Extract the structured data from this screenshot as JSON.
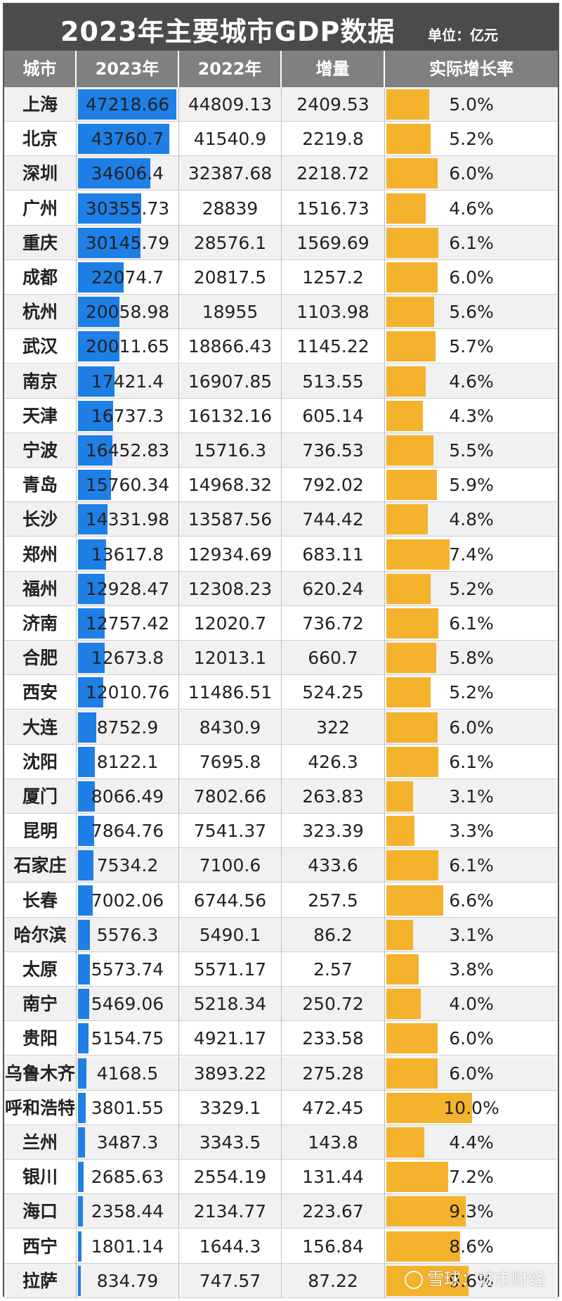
{
  "header": {
    "title": "2023年主要城市GDP数据",
    "unit": "单位：亿元",
    "columns": [
      "城市",
      "2023年",
      "2022年",
      "增量",
      "实际增长率"
    ]
  },
  "colors": {
    "bar_2023": "#1e7fe6",
    "bar_growth": "#f5b22c",
    "title_bg": "#4b4b4b",
    "header_bg": "#808080"
  },
  "watermark": "雪球：城市财经",
  "chart_data": {
    "type": "table",
    "title": "2023年主要城市GDP数据",
    "unit": "亿元",
    "columns": [
      "城市",
      "2023年",
      "2022年",
      "增量",
      "实际增长率"
    ],
    "rows": [
      {
        "city": "上海",
        "gdp2023": "47218.66",
        "gdp2022": "44809.13",
        "increase": "2409.53",
        "growth": "5.0%"
      },
      {
        "city": "北京",
        "gdp2023": "43760.7",
        "gdp2022": "41540.9",
        "increase": "2219.8",
        "growth": "5.2%"
      },
      {
        "city": "深圳",
        "gdp2023": "34606.4",
        "gdp2022": "32387.68",
        "increase": "2218.72",
        "growth": "6.0%"
      },
      {
        "city": "广州",
        "gdp2023": "30355.73",
        "gdp2022": "28839",
        "increase": "1516.73",
        "growth": "4.6%"
      },
      {
        "city": "重庆",
        "gdp2023": "30145.79",
        "gdp2022": "28576.1",
        "increase": "1569.69",
        "growth": "6.1%"
      },
      {
        "city": "成都",
        "gdp2023": "22074.7",
        "gdp2022": "20817.5",
        "increase": "1257.2",
        "growth": "6.0%"
      },
      {
        "city": "杭州",
        "gdp2023": "20058.98",
        "gdp2022": "18955",
        "increase": "1103.98",
        "growth": "5.6%"
      },
      {
        "city": "武汉",
        "gdp2023": "20011.65",
        "gdp2022": "18866.43",
        "increase": "1145.22",
        "growth": "5.7%"
      },
      {
        "city": "南京",
        "gdp2023": "17421.4",
        "gdp2022": "16907.85",
        "increase": "513.55",
        "growth": "4.6%"
      },
      {
        "city": "天津",
        "gdp2023": "16737.3",
        "gdp2022": "16132.16",
        "increase": "605.14",
        "growth": "4.3%"
      },
      {
        "city": "宁波",
        "gdp2023": "16452.83",
        "gdp2022": "15716.3",
        "increase": "736.53",
        "growth": "5.5%"
      },
      {
        "city": "青岛",
        "gdp2023": "15760.34",
        "gdp2022": "14968.32",
        "increase": "792.02",
        "growth": "5.9%"
      },
      {
        "city": "长沙",
        "gdp2023": "14331.98",
        "gdp2022": "13587.56",
        "increase": "744.42",
        "growth": "4.8%"
      },
      {
        "city": "郑州",
        "gdp2023": "13617.8",
        "gdp2022": "12934.69",
        "increase": "683.11",
        "growth": "7.4%"
      },
      {
        "city": "福州",
        "gdp2023": "12928.47",
        "gdp2022": "12308.23",
        "increase": "620.24",
        "growth": "5.2%"
      },
      {
        "city": "济南",
        "gdp2023": "12757.42",
        "gdp2022": "12020.7",
        "increase": "736.72",
        "growth": "6.1%"
      },
      {
        "city": "合肥",
        "gdp2023": "12673.8",
        "gdp2022": "12013.1",
        "increase": "660.7",
        "growth": "5.8%"
      },
      {
        "city": "西安",
        "gdp2023": "12010.76",
        "gdp2022": "11486.51",
        "increase": "524.25",
        "growth": "5.2%"
      },
      {
        "city": "大连",
        "gdp2023": "8752.9",
        "gdp2022": "8430.9",
        "increase": "322",
        "growth": "6.0%"
      },
      {
        "city": "沈阳",
        "gdp2023": "8122.1",
        "gdp2022": "7695.8",
        "increase": "426.3",
        "growth": "6.1%"
      },
      {
        "city": "厦门",
        "gdp2023": "8066.49",
        "gdp2022": "7802.66",
        "increase": "263.83",
        "growth": "3.1%"
      },
      {
        "city": "昆明",
        "gdp2023": "7864.76",
        "gdp2022": "7541.37",
        "increase": "323.39",
        "growth": "3.3%"
      },
      {
        "city": "石家庄",
        "gdp2023": "7534.2",
        "gdp2022": "7100.6",
        "increase": "433.6",
        "growth": "6.1%"
      },
      {
        "city": "长春",
        "gdp2023": "7002.06",
        "gdp2022": "6744.56",
        "increase": "257.5",
        "growth": "6.6%"
      },
      {
        "city": "哈尔滨",
        "gdp2023": "5576.3",
        "gdp2022": "5490.1",
        "increase": "86.2",
        "growth": "3.1%"
      },
      {
        "city": "太原",
        "gdp2023": "5573.74",
        "gdp2022": "5571.17",
        "increase": "2.57",
        "growth": "3.8%"
      },
      {
        "city": "南宁",
        "gdp2023": "5469.06",
        "gdp2022": "5218.34",
        "increase": "250.72",
        "growth": "4.0%"
      },
      {
        "city": "贵阳",
        "gdp2023": "5154.75",
        "gdp2022": "4921.17",
        "increase": "233.58",
        "growth": "6.0%"
      },
      {
        "city": "乌鲁木齐",
        "gdp2023": "4168.5",
        "gdp2022": "3893.22",
        "increase": "275.28",
        "growth": "6.0%"
      },
      {
        "city": "呼和浩特",
        "gdp2023": "3801.55",
        "gdp2022": "3329.1",
        "increase": "472.45",
        "growth": "10.0%"
      },
      {
        "city": "兰州",
        "gdp2023": "3487.3",
        "gdp2022": "3343.5",
        "increase": "143.8",
        "growth": "4.4%"
      },
      {
        "city": "银川",
        "gdp2023": "2685.63",
        "gdp2022": "2554.19",
        "increase": "131.44",
        "growth": "7.2%"
      },
      {
        "city": "海口",
        "gdp2023": "2358.44",
        "gdp2022": "2134.77",
        "increase": "223.67",
        "growth": "9.3%"
      },
      {
        "city": "西宁",
        "gdp2023": "1801.14",
        "gdp2022": "1644.3",
        "increase": "156.84",
        "growth": "8.6%"
      },
      {
        "city": "拉萨",
        "gdp2023": "834.79",
        "gdp2022": "747.57",
        "increase": "87.22",
        "growth": "9.6%"
      }
    ]
  }
}
